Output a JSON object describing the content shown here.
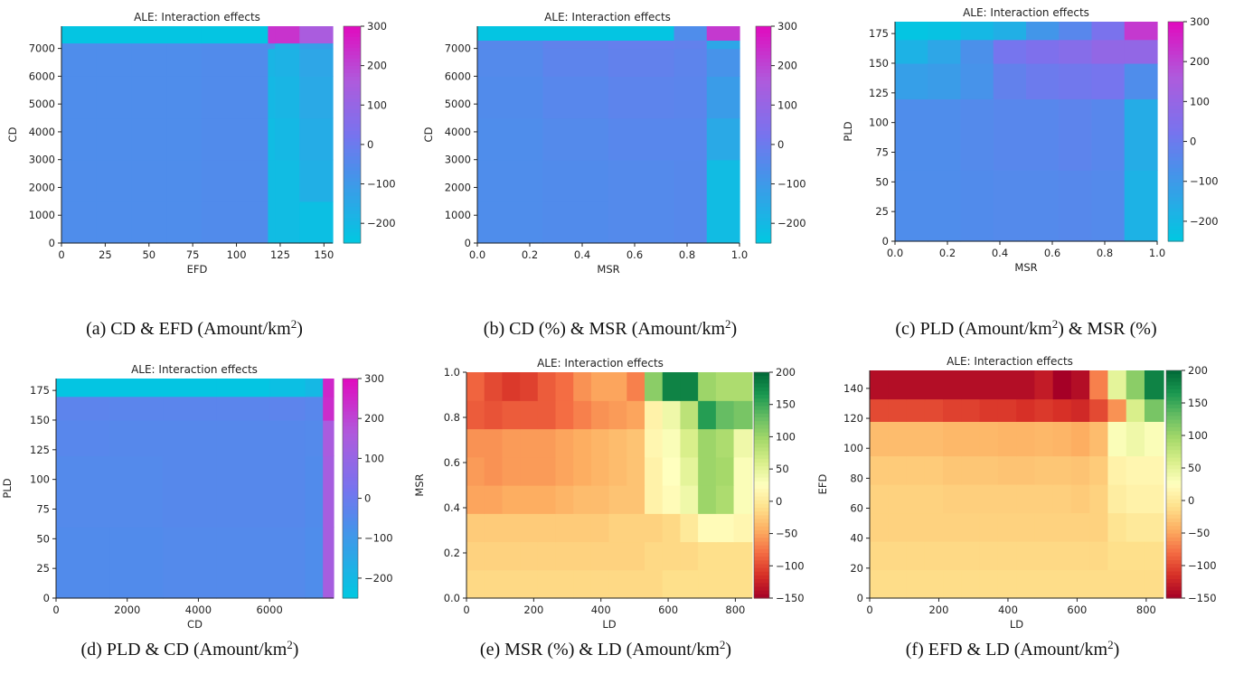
{
  "chart_data": [
    {
      "type": "heatmap",
      "title": "ALE: Interaction effects",
      "xlabel": "EFD",
      "ylabel": "CD",
      "xlim": [
        0,
        155
      ],
      "ylim": [
        0,
        7800
      ],
      "xticks": [
        0,
        25,
        50,
        75,
        100,
        125,
        150
      ],
      "yticks": [
        0,
        1000,
        2000,
        3000,
        4000,
        5000,
        6000,
        7000
      ],
      "xtick_labels": [
        "0",
        "25",
        "50",
        "75",
        "100",
        "125",
        "150"
      ],
      "ytick_labels": [
        "0",
        "1000",
        "2000",
        "3000",
        "4000",
        "5000",
        "6000",
        "7000"
      ],
      "x_edges": [
        0,
        20,
        40,
        60,
        80,
        100,
        118,
        122,
        136,
        155
      ],
      "y_edges": [
        0,
        1500,
        3000,
        4500,
        6000,
        7000,
        7200,
        7800
      ],
      "z": [
        [
          -60,
          -60,
          -60,
          -60,
          -55,
          -55,
          -210,
          -210,
          -220
        ],
        [
          -60,
          -60,
          -60,
          -60,
          -55,
          -55,
          -210,
          -210,
          -170
        ],
        [
          -60,
          -60,
          -60,
          -60,
          -55,
          -55,
          -210,
          -200,
          -160
        ],
        [
          -60,
          -60,
          -60,
          -60,
          -55,
          -55,
          -200,
          -190,
          -150
        ],
        [
          -60,
          -60,
          -60,
          -60,
          -55,
          -55,
          -190,
          -180,
          -140
        ],
        [
          -60,
          -60,
          -60,
          -60,
          -55,
          -55,
          -60,
          -160,
          -120
        ],
        [
          -240,
          -240,
          -240,
          -240,
          -240,
          -240,
          230,
          230,
          150
        ]
      ],
      "colorbar": {
        "colormap": "cool",
        "vmin": -250,
        "vmax": 300,
        "ticks": [
          -200,
          -100,
          0,
          100,
          200,
          300
        ],
        "tick_labels": [
          "−200",
          "−100",
          "0",
          "100",
          "200",
          "300"
        ]
      },
      "caption": {
        "prefix": "(a)",
        "text": "CD & EFD (Amount/km",
        "sup": "2",
        "suffix": ")"
      }
    },
    {
      "type": "heatmap",
      "title": "ALE: Interaction effects",
      "xlabel": "MSR",
      "ylabel": "CD",
      "xlim": [
        0,
        1
      ],
      "ylim": [
        0,
        7800
      ],
      "xticks": [
        0,
        0.2,
        0.4,
        0.6,
        0.8,
        1.0
      ],
      "yticks": [
        0,
        1000,
        2000,
        3000,
        4000,
        5000,
        6000,
        7000
      ],
      "xtick_labels": [
        "0.0",
        "0.2",
        "0.4",
        "0.6",
        "0.8",
        "1.0"
      ],
      "ytick_labels": [
        "0",
        "1000",
        "2000",
        "3000",
        "4000",
        "5000",
        "6000",
        "7000"
      ],
      "x_edges": [
        0,
        0.25,
        0.5,
        0.75,
        0.875,
        1.0
      ],
      "y_edges": [
        0,
        1500,
        3000,
        4500,
        6000,
        7000,
        7300,
        7800
      ],
      "z": [
        [
          -60,
          -55,
          -50,
          -45,
          -210
        ],
        [
          -60,
          -55,
          -50,
          -45,
          -210
        ],
        [
          -60,
          -50,
          -40,
          -40,
          -150
        ],
        [
          -55,
          -40,
          -30,
          -35,
          -110
        ],
        [
          -50,
          -30,
          -20,
          -30,
          -80
        ],
        [
          -45,
          -25,
          -15,
          -20,
          -140
        ],
        [
          -240,
          -240,
          -240,
          -60,
          220
        ]
      ],
      "colorbar": {
        "colormap": "cool",
        "vmin": -250,
        "vmax": 300,
        "ticks": [
          -200,
          -100,
          0,
          100,
          200,
          300
        ],
        "tick_labels": [
          "−200",
          "−100",
          "0",
          "100",
          "200",
          "300"
        ]
      },
      "caption": {
        "prefix": "(b)",
        "text": "CD (%) & MSR (Amount/km",
        "sup": "2",
        "suffix": ")"
      }
    },
    {
      "type": "heatmap",
      "title": "ALE: Interaction effects",
      "xlabel": "MSR",
      "ylabel": "PLD",
      "xlim": [
        0,
        1
      ],
      "ylim": [
        0,
        185
      ],
      "xticks": [
        0,
        0.2,
        0.4,
        0.6,
        0.8,
        1.0
      ],
      "yticks": [
        0,
        25,
        50,
        75,
        100,
        125,
        150,
        175
      ],
      "xtick_labels": [
        "0.0",
        "0.2",
        "0.4",
        "0.6",
        "0.8",
        "1.0"
      ],
      "ytick_labels": [
        "0",
        "25",
        "50",
        "75",
        "100",
        "125",
        "150",
        "175"
      ],
      "x_edges": [
        0,
        0.125,
        0.25,
        0.375,
        0.5,
        0.625,
        0.75,
        0.875,
        1.0
      ],
      "y_edges": [
        0,
        60,
        120,
        150,
        170,
        185
      ],
      "z": [
        [
          -60,
          -60,
          -55,
          -50,
          -50,
          -45,
          -50,
          -180
        ],
        [
          -60,
          -60,
          -50,
          -40,
          -40,
          -30,
          -40,
          -160
        ],
        [
          -120,
          -110,
          -80,
          -20,
          0,
          10,
          20,
          -60
        ],
        [
          -180,
          -140,
          -70,
          20,
          40,
          60,
          90,
          90
        ],
        [
          -240,
          -230,
          -200,
          -170,
          -90,
          -40,
          30,
          220
        ]
      ],
      "colorbar": {
        "colormap": "cool",
        "vmin": -250,
        "vmax": 300,
        "ticks": [
          -200,
          -100,
          0,
          100,
          200,
          300
        ],
        "tick_labels": [
          "−200",
          "−100",
          "0",
          "100",
          "200",
          "300"
        ]
      },
      "caption": {
        "prefix": "(c)",
        "text": "PLD (Amount/km",
        "sup": "2",
        "suffix": ") & MSR (%)"
      }
    },
    {
      "type": "heatmap",
      "title": "ALE: Interaction effects",
      "xlabel": "CD",
      "ylabel": "PLD",
      "xlim": [
        0,
        7800
      ],
      "ylim": [
        0,
        185
      ],
      "xticks": [
        0,
        2000,
        4000,
        6000
      ],
      "yticks": [
        0,
        25,
        50,
        75,
        100,
        125,
        150,
        175
      ],
      "xtick_labels": [
        "0",
        "2000",
        "4000",
        "6000"
      ],
      "ytick_labels": [
        "0",
        "25",
        "50",
        "75",
        "100",
        "125",
        "150",
        "175"
      ],
      "x_edges": [
        0,
        1500,
        3000,
        4500,
        6000,
        7000,
        7500,
        7800
      ],
      "y_edges": [
        0,
        60,
        120,
        150,
        170,
        185
      ],
      "z": [
        [
          -55,
          -55,
          -50,
          -50,
          -50,
          -60,
          140
        ],
        [
          -50,
          -50,
          -45,
          -45,
          -45,
          -55,
          140
        ],
        [
          -40,
          -45,
          -45,
          -45,
          -45,
          -50,
          150
        ],
        [
          -30,
          -35,
          -35,
          -35,
          -30,
          -40,
          240
        ],
        [
          -240,
          -240,
          -240,
          -240,
          -220,
          -200,
          250
        ]
      ],
      "colorbar": {
        "colormap": "cool",
        "vmin": -250,
        "vmax": 300,
        "ticks": [
          -200,
          -100,
          0,
          100,
          200,
          300
        ],
        "tick_labels": [
          "−200",
          "−100",
          "0",
          "100",
          "200",
          "300"
        ]
      },
      "caption": {
        "prefix": "(d)",
        "text": "PLD & CD (Amount/km",
        "sup": "2",
        "suffix": ")"
      }
    },
    {
      "type": "heatmap",
      "title": "ALE: Interaction effects",
      "xlabel": "LD",
      "ylabel": "MSR",
      "xlim": [
        0,
        850
      ],
      "ylim": [
        0,
        1.0
      ],
      "xticks": [
        0,
        200,
        400,
        600,
        800
      ],
      "yticks": [
        0,
        0.2,
        0.4,
        0.6,
        0.8,
        1.0
      ],
      "xtick_labels": [
        "0",
        "200",
        "400",
        "600",
        "800"
      ],
      "ytick_labels": [
        "0.0",
        "0.2",
        "0.4",
        "0.6",
        "0.8",
        "1.0"
      ],
      "x_edges": [
        0,
        53,
        106,
        159,
        212,
        265,
        318,
        371,
        424,
        477,
        530,
        583,
        636,
        689,
        742,
        795,
        850
      ],
      "y_edges": [
        0,
        0.125,
        0.25,
        0.375,
        0.5,
        0.625,
        0.75,
        0.875,
        1.0
      ],
      "z": [
        [
          -15,
          -15,
          -15,
          -15,
          -15,
          -15,
          -15,
          -15,
          -15,
          -15,
          -15,
          -10,
          -10,
          -10,
          -10,
          -10
        ],
        [
          -20,
          -20,
          -20,
          -20,
          -20,
          -20,
          -20,
          -20,
          -20,
          -20,
          -15,
          -15,
          -15,
          -10,
          -10,
          -10
        ],
        [
          -25,
          -25,
          -25,
          -25,
          -25,
          -25,
          -25,
          -25,
          -20,
          -20,
          -20,
          -15,
          0,
          20,
          20,
          15
        ],
        [
          -50,
          -50,
          -45,
          -45,
          -45,
          -40,
          -35,
          -35,
          -30,
          -30,
          10,
          20,
          40,
          100,
          90,
          30
        ],
        [
          -55,
          -60,
          -55,
          -55,
          -55,
          -50,
          -45,
          -40,
          -35,
          -30,
          10,
          25,
          50,
          100,
          95,
          30
        ],
        [
          -60,
          -60,
          -55,
          -55,
          -55,
          -50,
          -45,
          -40,
          -35,
          -30,
          15,
          30,
          60,
          100,
          90,
          40
        ],
        [
          -90,
          -95,
          -90,
          -90,
          -90,
          -80,
          -70,
          -60,
          -55,
          -50,
          10,
          40,
          80,
          160,
          130,
          120
        ],
        [
          -85,
          -100,
          -110,
          -105,
          -90,
          -80,
          -60,
          -50,
          -50,
          -70,
          110,
          180,
          180,
          100,
          90,
          90
        ]
      ],
      "colorbar": {
        "colormap": "RdYlGn",
        "vmin": -150,
        "vmax": 200,
        "ticks": [
          -150,
          -100,
          -50,
          0,
          50,
          100,
          150,
          200
        ],
        "tick_labels": [
          "−150",
          "−100",
          "−50",
          "0",
          "50",
          "100",
          "150",
          "200"
        ]
      },
      "caption": {
        "prefix": "(e)",
        "text": "MSR (%) & LD (Amount/km",
        "sup": "2",
        "suffix": ")"
      }
    },
    {
      "type": "heatmap",
      "title": "ALE: Interaction effects",
      "xlabel": "LD",
      "ylabel": "EFD",
      "xlim": [
        0,
        850
      ],
      "ylim": [
        0,
        152
      ],
      "xticks": [
        0,
        200,
        400,
        600,
        800
      ],
      "yticks": [
        0,
        20,
        40,
        60,
        80,
        100,
        120,
        140
      ],
      "xtick_labels": [
        "0",
        "200",
        "400",
        "600",
        "800"
      ],
      "ytick_labels": [
        "0",
        "20",
        "40",
        "60",
        "80",
        "100",
        "120",
        "140"
      ],
      "x_edges": [
        0,
        53,
        106,
        159,
        212,
        265,
        318,
        371,
        424,
        477,
        530,
        583,
        636,
        689,
        742,
        795,
        850
      ],
      "y_edges": [
        0,
        19,
        38,
        57,
        76,
        95,
        118,
        133,
        152
      ],
      "z": [
        [
          -12,
          -12,
          -12,
          -12,
          -12,
          -12,
          -12,
          -12,
          -12,
          -12,
          -12,
          -12,
          -12,
          -12,
          -12,
          -12
        ],
        [
          -15,
          -15,
          -15,
          -15,
          -15,
          -15,
          -15,
          -15,
          -15,
          -15,
          -15,
          -15,
          -15,
          -10,
          -10,
          -10
        ],
        [
          -20,
          -20,
          -20,
          -20,
          -20,
          -20,
          -20,
          -20,
          -20,
          -20,
          -20,
          -20,
          -20,
          -5,
          0,
          0
        ],
        [
          -20,
          -20,
          -20,
          -20,
          -22,
          -22,
          -22,
          -22,
          -22,
          -22,
          -22,
          -25,
          -20,
          5,
          10,
          10
        ],
        [
          -25,
          -25,
          -25,
          -25,
          -28,
          -28,
          -28,
          -30,
          -30,
          -28,
          -28,
          -30,
          -25,
          10,
          15,
          15
        ],
        [
          -35,
          -35,
          -35,
          -35,
          -38,
          -38,
          -38,
          -40,
          -40,
          -38,
          -40,
          -45,
          -35,
          30,
          40,
          30
        ],
        [
          -100,
          -100,
          -100,
          -100,
          -105,
          -105,
          -110,
          -110,
          -115,
          -110,
          -115,
          -120,
          -100,
          -60,
          60,
          120
        ],
        [
          -140,
          -140,
          -140,
          -140,
          -140,
          -140,
          -140,
          -140,
          -140,
          -130,
          -150,
          -140,
          -70,
          50,
          110,
          180
        ]
      ],
      "colorbar": {
        "colormap": "RdYlGn",
        "vmin": -150,
        "vmax": 200,
        "ticks": [
          -150,
          -100,
          -50,
          0,
          50,
          100,
          150,
          200
        ],
        "tick_labels": [
          "−150",
          "−100",
          "−50",
          "0",
          "50",
          "100",
          "150",
          "200"
        ]
      },
      "caption": {
        "prefix": "(f)",
        "text": "EFD & LD (Amount/km",
        "sup": "2",
        "suffix": ")"
      }
    }
  ]
}
